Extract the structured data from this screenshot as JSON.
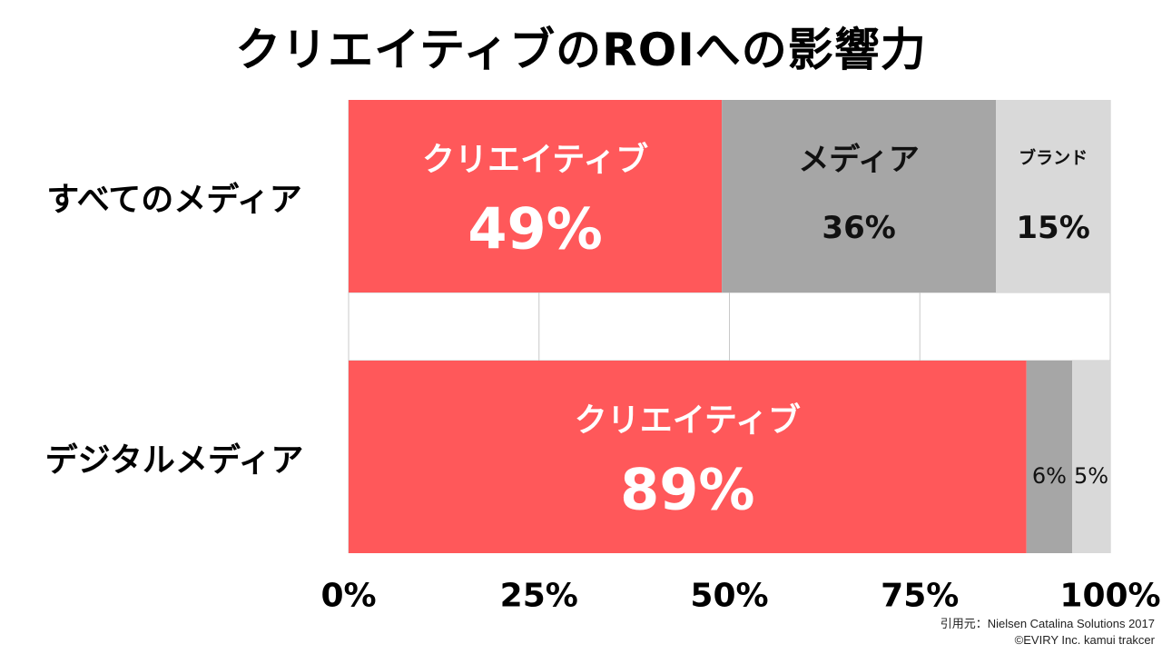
{
  "chart_data": {
    "type": "bar",
    "stacked": true,
    "orientation": "horizontal",
    "title": "クリエイティブのROIへの影響力",
    "categories": [
      "すべてのメディア",
      "デジタルメディア"
    ],
    "series": [
      {
        "name": "クリエイティブ",
        "color": "#FF585A",
        "values": [
          49,
          89
        ],
        "data_labels": [
          "49%",
          "89%"
        ],
        "category_labels": [
          "クリエイティブ",
          "クリエイティブ"
        ]
      },
      {
        "name": "メディア",
        "color": "#A6A6A6",
        "values": [
          36,
          6
        ],
        "data_labels": [
          "36%",
          "6%"
        ],
        "category_labels": [
          "メディア",
          ""
        ]
      },
      {
        "name": "ブランド",
        "color": "#D9D9D9",
        "values": [
          15,
          5
        ],
        "data_labels": [
          "15%",
          "5%"
        ],
        "category_labels": [
          "ブランド",
          ""
        ]
      }
    ],
    "xlim": [
      0,
      100
    ],
    "x_ticks": [
      "0%",
      "25%",
      "50%",
      "75%",
      "100%"
    ],
    "grid": true,
    "legend": "none"
  },
  "source": {
    "citation": "引用元：Nielsen Catalina Solutions 2017",
    "copyright": "©EVIRY Inc. kamui trakcer"
  }
}
